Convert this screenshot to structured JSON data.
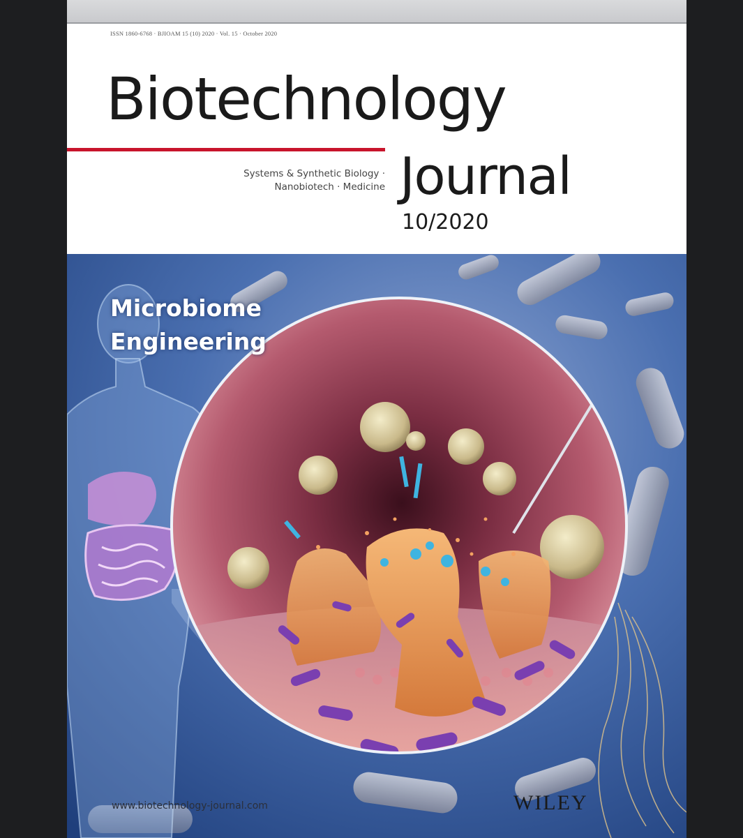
{
  "cover": {
    "issn_line": "ISSN 1860-6768 · BJIOAM 15 (10) 2020 · Vol. 15 · October 2020",
    "title_line1": "Biotechnology",
    "title_line2": "Journal",
    "tagline_line1": "Systems & Synthetic Biology ·",
    "tagline_line2": "Nanobiotech · Medicine",
    "issue": "10/2020",
    "topic_line1": "Microbiome",
    "topic_line2": "Engineering",
    "website": "www.biotechnology-journal.com",
    "publisher": "WILEY"
  },
  "colors": {
    "accent_red": "#c8142c",
    "background_blue": "#2a4f8e",
    "tissue_pink": "#b45a6e",
    "cell_orange": "#e89a52",
    "bacteria_purple": "#7a3fb0"
  }
}
